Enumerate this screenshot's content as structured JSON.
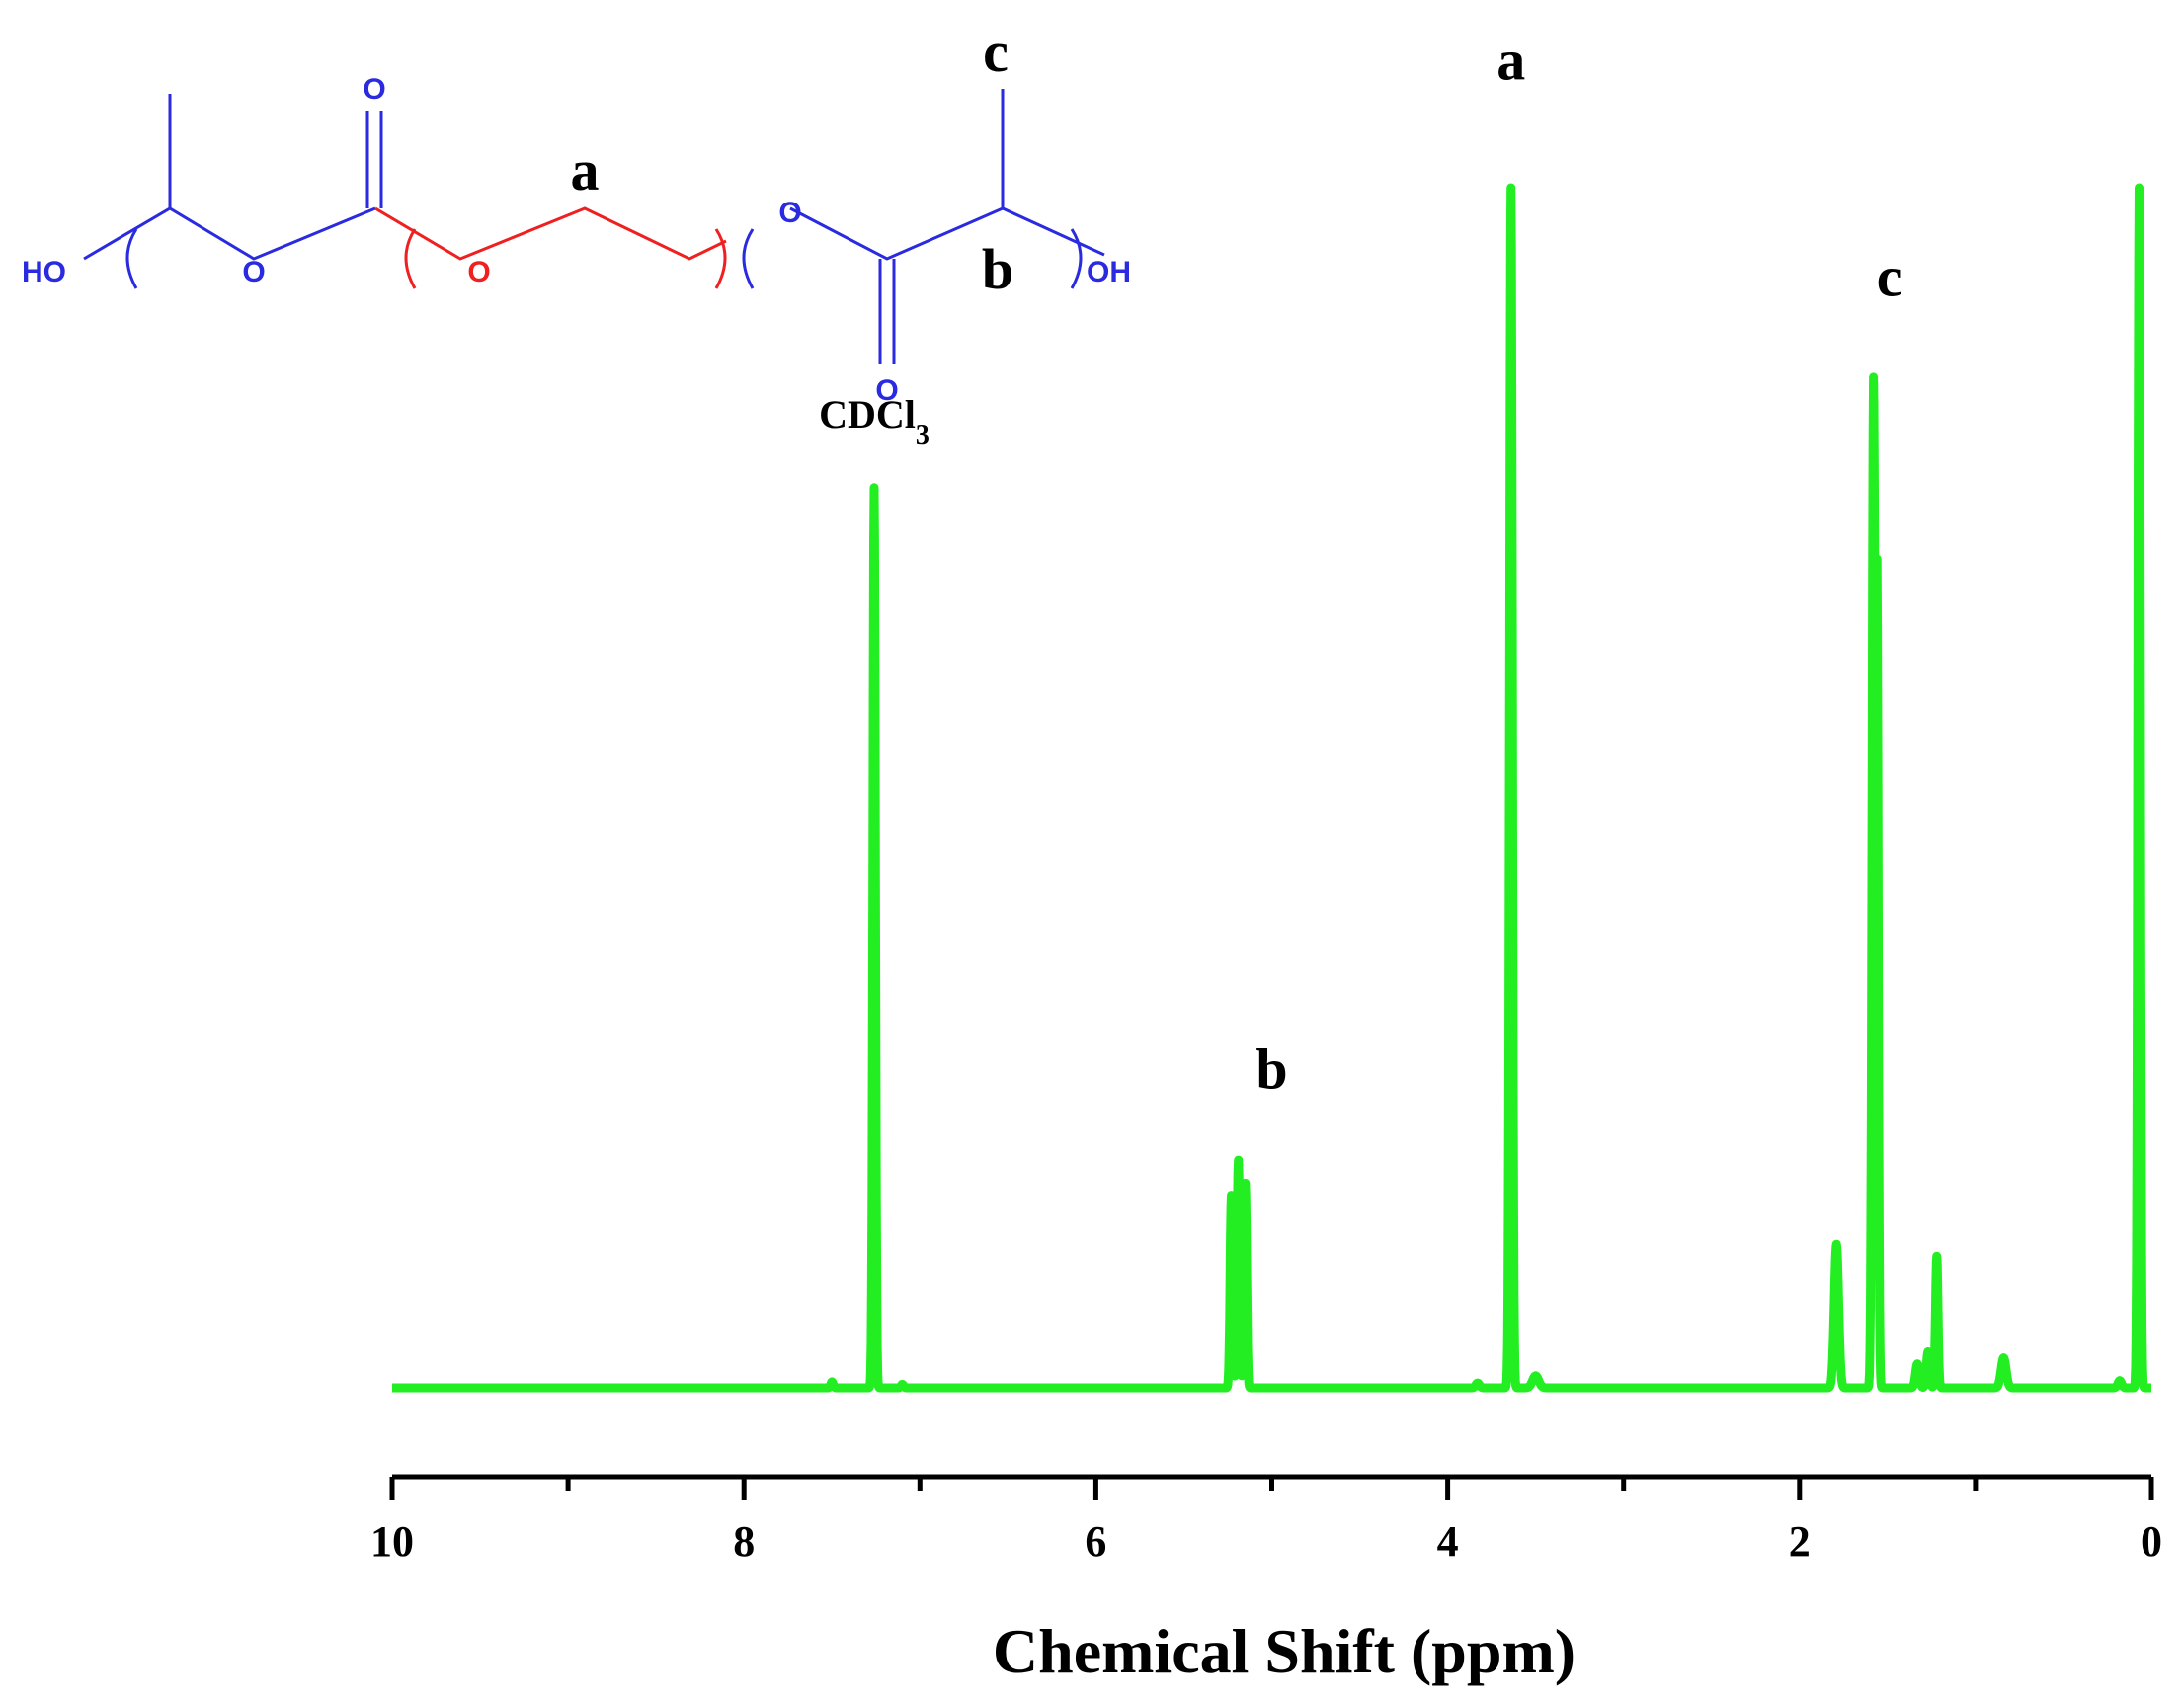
{
  "chart_data": {
    "type": "line",
    "xlabel": "Chemical Shift (ppm)",
    "ylabel": "",
    "xlim": [
      10,
      0
    ],
    "x_reversed": true,
    "ylim": [
      0,
      1
    ],
    "y_axis_visible": false,
    "grid": false,
    "x_ticks": [
      10,
      8,
      6,
      4,
      2,
      0
    ],
    "x_tick_labels": [
      "10",
      "8",
      "6",
      "4",
      "2",
      "0"
    ],
    "x_minor_ticks": [
      9,
      7,
      5,
      3,
      1
    ],
    "series_color": "#22ee22",
    "peaks": [
      {
        "x": 7.26,
        "height": 0.75,
        "width": 0.02
      },
      {
        "x": 7.5,
        "height": 0.005,
        "width": 0.02
      },
      {
        "x": 7.1,
        "height": 0.003,
        "width": 0.02
      },
      {
        "x": 5.23,
        "height": 0.16,
        "width": 0.02
      },
      {
        "x": 5.19,
        "height": 0.19,
        "width": 0.022
      },
      {
        "x": 5.15,
        "height": 0.17,
        "width": 0.02
      },
      {
        "x": 3.83,
        "height": 0.004,
        "width": 0.03
      },
      {
        "x": 3.64,
        "height": 1.0,
        "width": 0.022
      },
      {
        "x": 3.5,
        "height": 0.01,
        "width": 0.05
      },
      {
        "x": 1.79,
        "height": 0.12,
        "width": 0.035
      },
      {
        "x": 1.58,
        "height": 0.83,
        "width": 0.022
      },
      {
        "x": 1.56,
        "height": 0.66,
        "width": 0.02
      },
      {
        "x": 1.33,
        "height": 0.02,
        "width": 0.03
      },
      {
        "x": 1.27,
        "height": 0.03,
        "width": 0.025
      },
      {
        "x": 1.22,
        "height": 0.11,
        "width": 0.02
      },
      {
        "x": 0.84,
        "height": 0.025,
        "width": 0.04
      },
      {
        "x": 0.18,
        "height": 0.006,
        "width": 0.03
      },
      {
        "x": 0.07,
        "height": 1.0,
        "width": 0.02
      }
    ],
    "annotations": [
      {
        "text": "a",
        "x": 3.64,
        "y": 1.09
      },
      {
        "text": "c",
        "x": 1.49,
        "y": 0.91
      },
      {
        "text": "b",
        "x": 5.0,
        "y": 0.25
      },
      {
        "text": "CDCl",
        "subscript": "3",
        "x": 7.26,
        "y": 0.8
      }
    ]
  },
  "structure": {
    "labels": {
      "a": "a",
      "b": "b",
      "c": "c"
    },
    "atoms": {
      "ho": "HO",
      "oh": "OH",
      "o": "O"
    },
    "colors": {
      "pla": "#2a2ae0",
      "peg": "#ee2020",
      "label": "#000000"
    }
  }
}
